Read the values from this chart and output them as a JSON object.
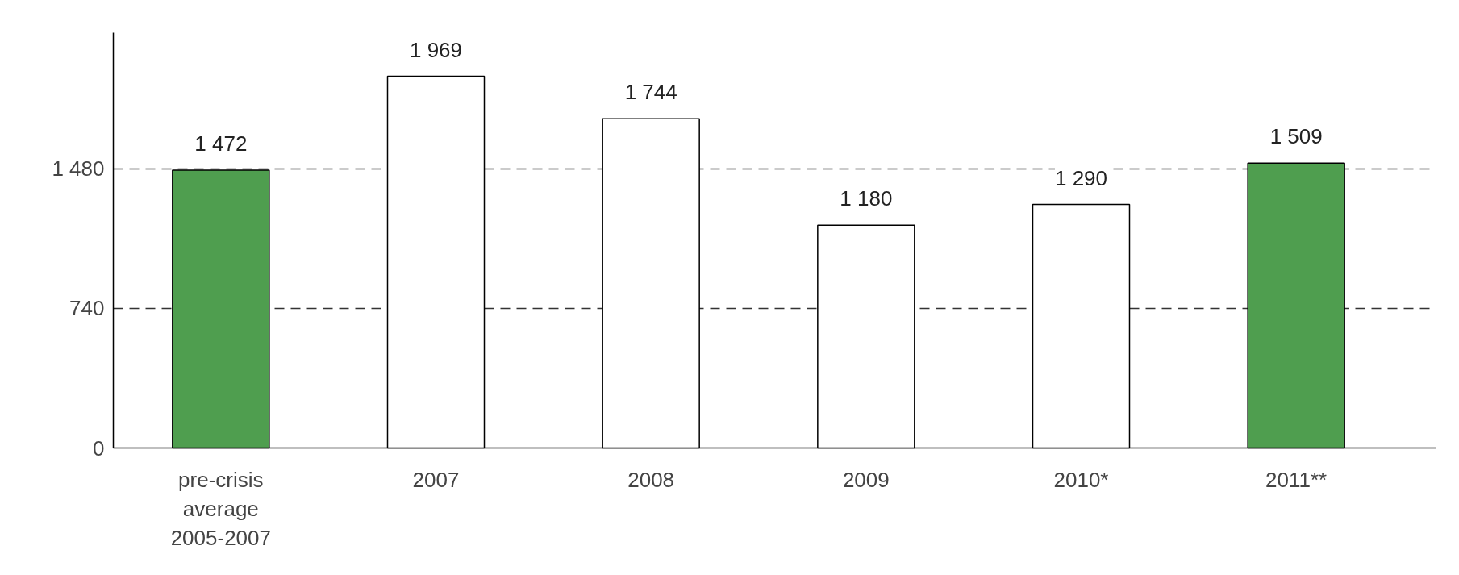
{
  "chart_data": {
    "type": "bar",
    "categories": [
      "pre-crisis average 2005-2007",
      "2007",
      "2008",
      "2009",
      "2010*",
      "2011**"
    ],
    "values": [
      1472,
      1969,
      1744,
      1180,
      1290,
      1509
    ],
    "colors": [
      "#4f9e4f",
      "#ffffff",
      "#ffffff",
      "#ffffff",
      "#ffffff",
      "#4f9e4f"
    ],
    "value_labels": [
      "1 472",
      "1 969",
      "1 744",
      "1 180",
      "1 290",
      "1 509"
    ],
    "ylim": [
      0,
      2200
    ],
    "yticks": [
      0,
      {
        "value": 740,
        "label": "740"
      },
      {
        "value": 1480,
        "label": "1 480"
      }
    ],
    "grid": "y",
    "line_style": "dashed"
  }
}
